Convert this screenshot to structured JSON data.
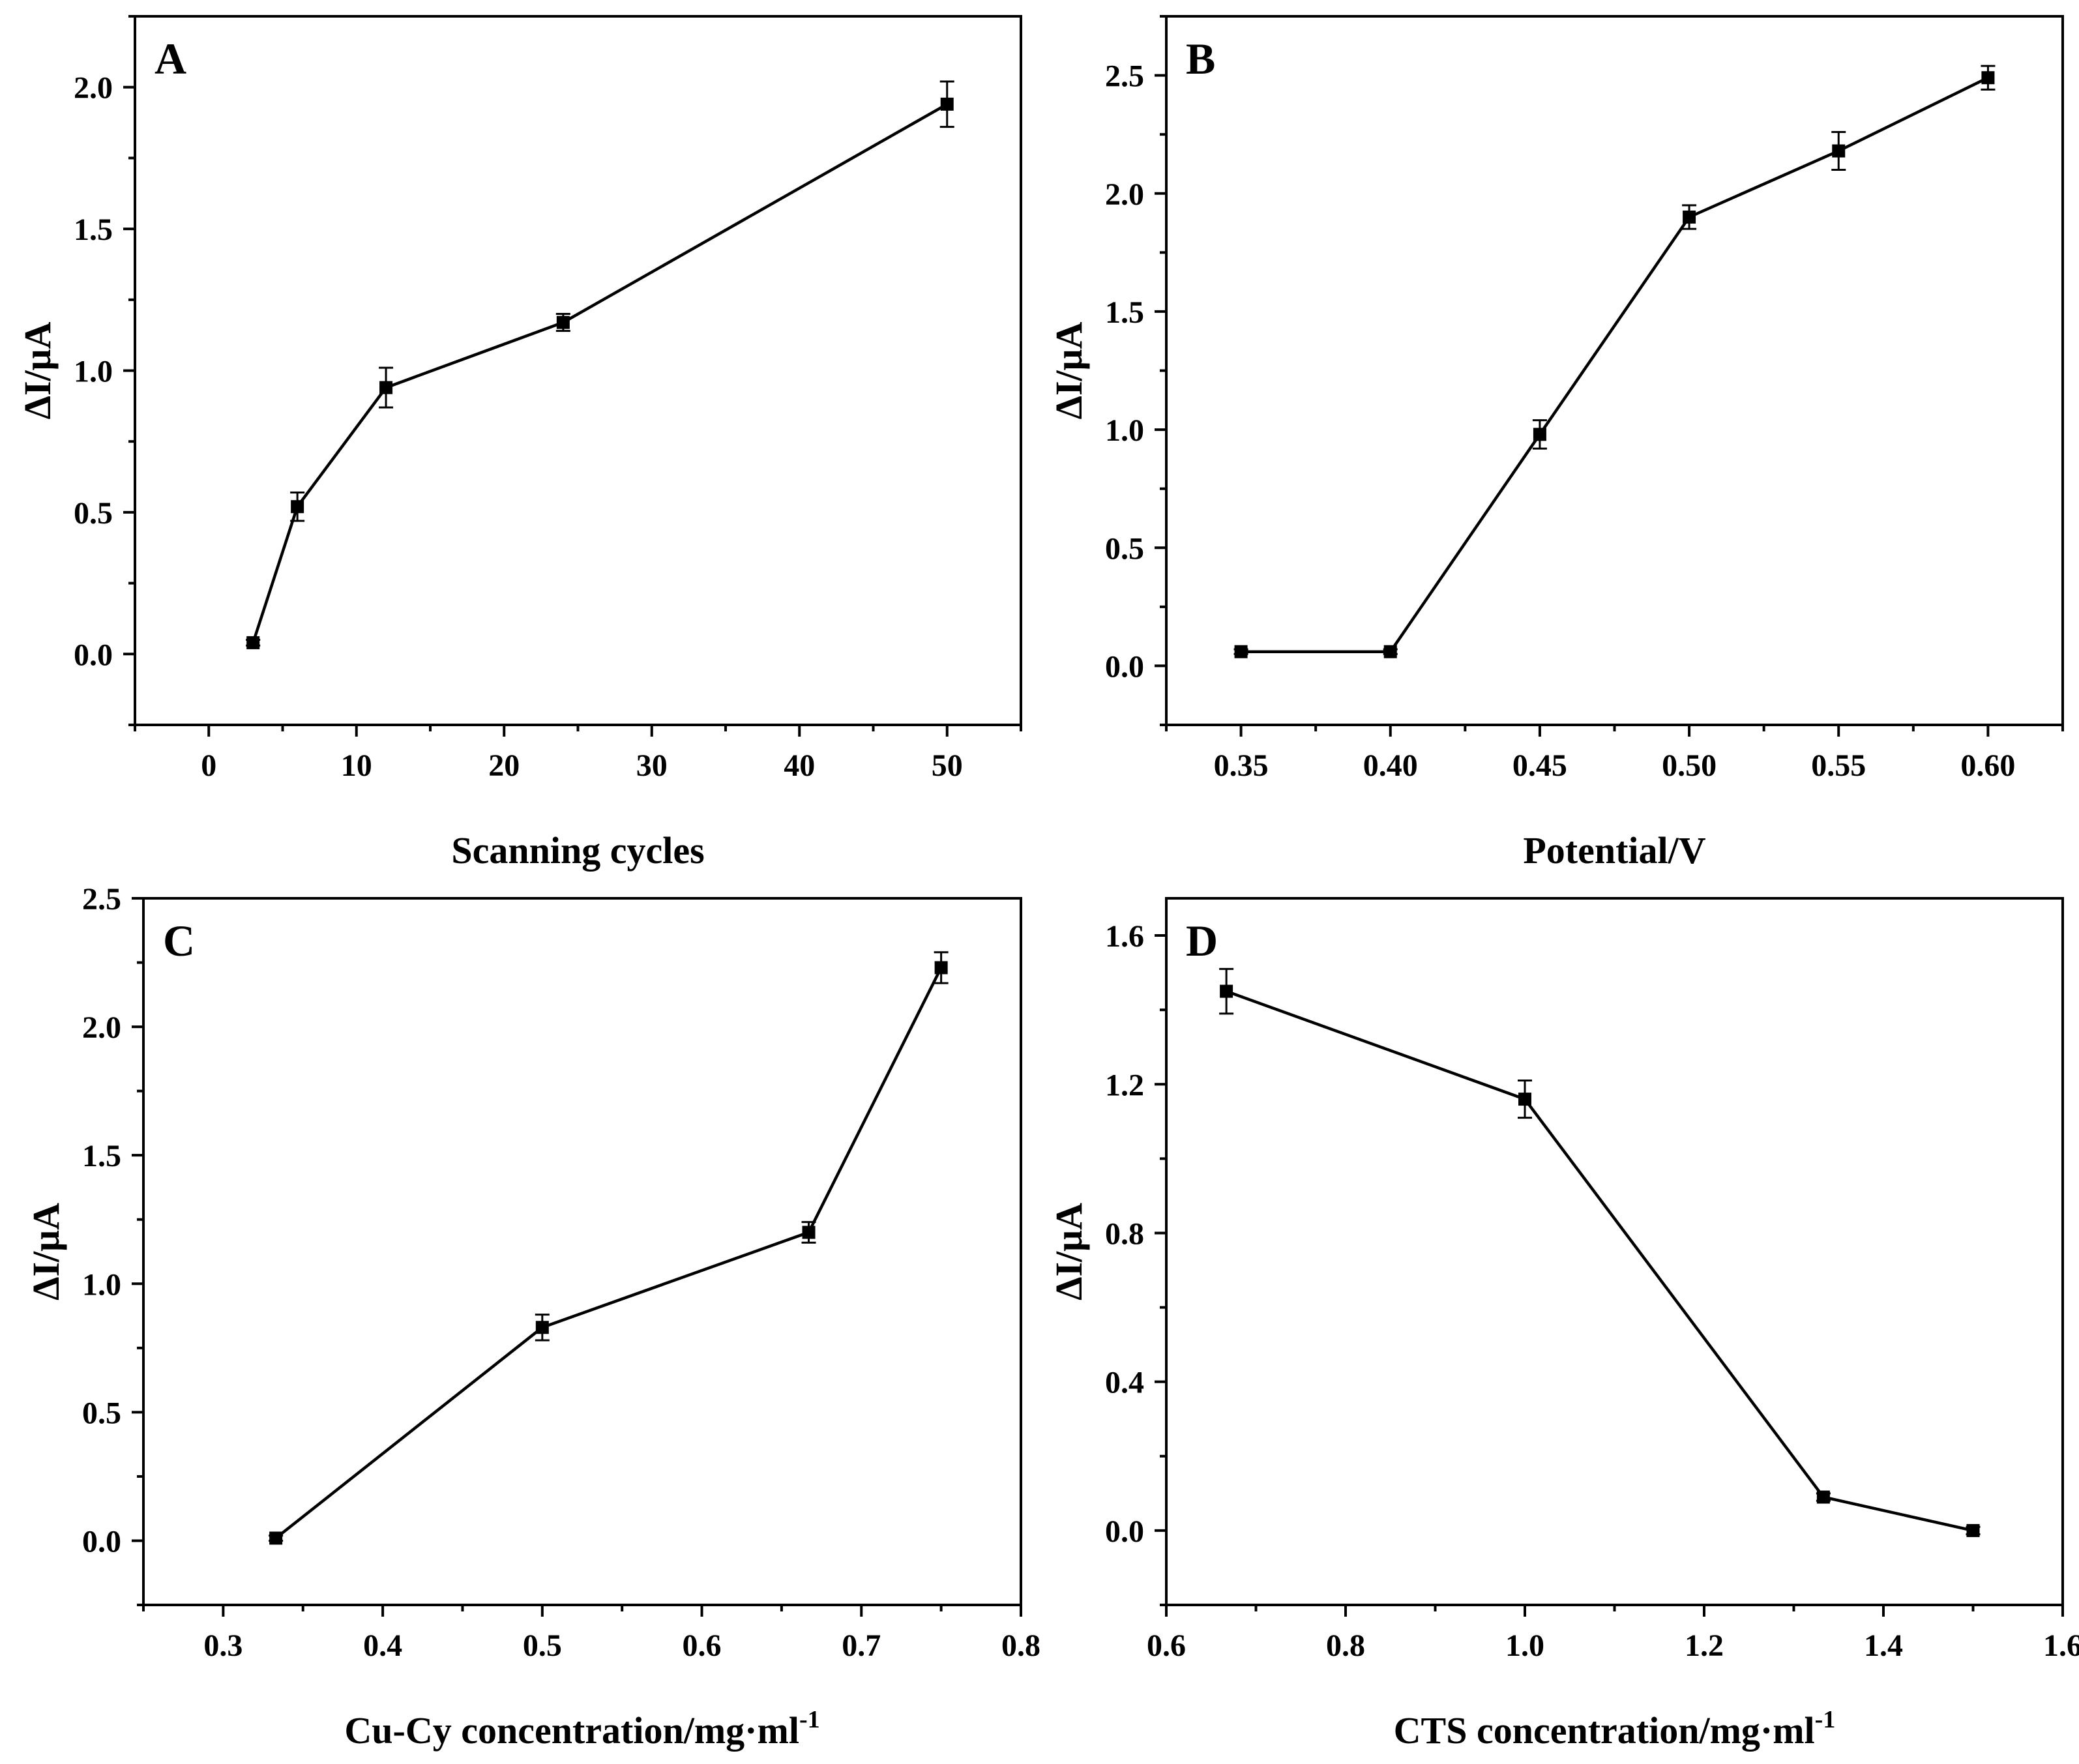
{
  "chart_data": [
    {
      "panel": "A",
      "type": "line",
      "xlabel": "Scanning cycles",
      "ylabel": "ΔI/μA",
      "xlim": [
        -5,
        55
      ],
      "ylim": [
        -0.25,
        2.25
      ],
      "xticks": [
        0,
        10,
        20,
        30,
        40,
        50
      ],
      "xtick_labels": [
        "0",
        "10",
        "20",
        "30",
        "40",
        "50"
      ],
      "yticks": [
        0.0,
        0.5,
        1.0,
        1.5,
        2.0
      ],
      "ytick_labels": [
        "0.0",
        "0.5",
        "1.0",
        "1.5",
        "2.0"
      ],
      "x": [
        3,
        6,
        12,
        24,
        50
      ],
      "y": [
        0.04,
        0.52,
        0.94,
        1.17,
        1.94
      ],
      "err": [
        0.01,
        0.05,
        0.07,
        0.03,
        0.08
      ]
    },
    {
      "panel": "B",
      "type": "line",
      "xlabel": "Potential/V",
      "ylabel": "ΔI/μA",
      "xlim": [
        0.325,
        0.625
      ],
      "ylim": [
        -0.25,
        2.75
      ],
      "xticks": [
        0.35,
        0.4,
        0.45,
        0.5,
        0.55,
        0.6
      ],
      "xtick_labels": [
        "0.35",
        "0.40",
        "0.45",
        "0.50",
        "0.55",
        "0.60"
      ],
      "yticks": [
        0.0,
        0.5,
        1.0,
        1.5,
        2.0,
        2.5
      ],
      "ytick_labels": [
        "0.0",
        "0.5",
        "1.0",
        "1.5",
        "2.0",
        "2.5"
      ],
      "x": [
        0.35,
        0.4,
        0.45,
        0.5,
        0.55,
        0.6
      ],
      "y": [
        0.06,
        0.06,
        0.98,
        1.9,
        2.18,
        2.49
      ],
      "err": [
        0.01,
        0.01,
        0.06,
        0.05,
        0.08,
        0.05
      ]
    },
    {
      "panel": "C",
      "type": "line",
      "xlabel": "Cu-Cy concentration/mg·ml",
      "xlabel_sup": "-1",
      "ylabel": "ΔI/μA",
      "xlim": [
        0.25,
        0.8
      ],
      "ylim": [
        -0.25,
        2.5
      ],
      "xticks": [
        0.3,
        0.4,
        0.5,
        0.6,
        0.7,
        0.8
      ],
      "xtick_labels": [
        "0.3",
        "0.4",
        "0.5",
        "0.6",
        "0.7",
        "0.8"
      ],
      "yticks": [
        0.0,
        0.5,
        1.0,
        1.5,
        2.0,
        2.5
      ],
      "ytick_labels": [
        "0.0",
        "0.5",
        "1.0",
        "1.5",
        "2.0",
        "2.5"
      ],
      "x": [
        0.333,
        0.5,
        0.667,
        0.75
      ],
      "y": [
        0.01,
        0.83,
        1.2,
        2.23
      ],
      "err": [
        0.01,
        0.05,
        0.04,
        0.06
      ]
    },
    {
      "panel": "D",
      "type": "line",
      "xlabel": "CTS concentration/mg·ml",
      "xlabel_sup": "-1",
      "ylabel": "ΔI/μA",
      "xlim": [
        0.6,
        1.6
      ],
      "ylim": [
        -0.2,
        1.7
      ],
      "xticks": [
        0.6,
        0.8,
        1.0,
        1.2,
        1.4,
        1.6
      ],
      "xtick_labels": [
        "0.6",
        "0.8",
        "1.0",
        "1.2",
        "1.4",
        "1.6"
      ],
      "yticks": [
        0.0,
        0.4,
        0.8,
        1.2,
        1.6
      ],
      "ytick_labels": [
        "0.0",
        "0.4",
        "0.8",
        "1.2",
        "1.6"
      ],
      "x": [
        0.667,
        1.0,
        1.333,
        1.5
      ],
      "y": [
        1.45,
        1.16,
        0.09,
        0.0
      ],
      "err": [
        0.06,
        0.05,
        0.01,
        0.01
      ]
    }
  ]
}
